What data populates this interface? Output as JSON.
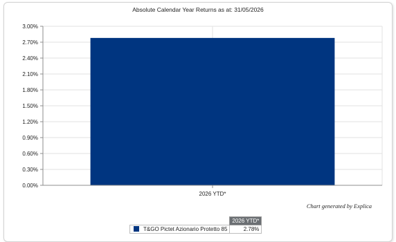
{
  "colors": {
    "bar": "#003580",
    "grid": "#e2e2e2",
    "axis": "#8c8c8c"
  },
  "chart_data": {
    "type": "bar",
    "title": "Absolute Calendar Year Returns as at: 31/05/2026",
    "categories": [
      "2026 YTD*"
    ],
    "series": [
      {
        "name": "T&GO Pictet Azionario Protetto 85",
        "values": [
          2.78
        ]
      }
    ],
    "ylim": [
      0,
      3.0
    ],
    "yticks": [
      "0.00%",
      "0.30%",
      "0.60%",
      "0.90%",
      "1.20%",
      "1.50%",
      "1.80%",
      "2.10%",
      "2.40%",
      "2.70%",
      "3.00%"
    ],
    "grid": true,
    "legend": {
      "placement": "bottom",
      "column_header": "2026 YTD*",
      "rows": [
        {
          "name": "T&GO Pictet Azionario Protetto 85",
          "value": "2.78%"
        }
      ]
    }
  },
  "credit": "Chart generated by Explica"
}
